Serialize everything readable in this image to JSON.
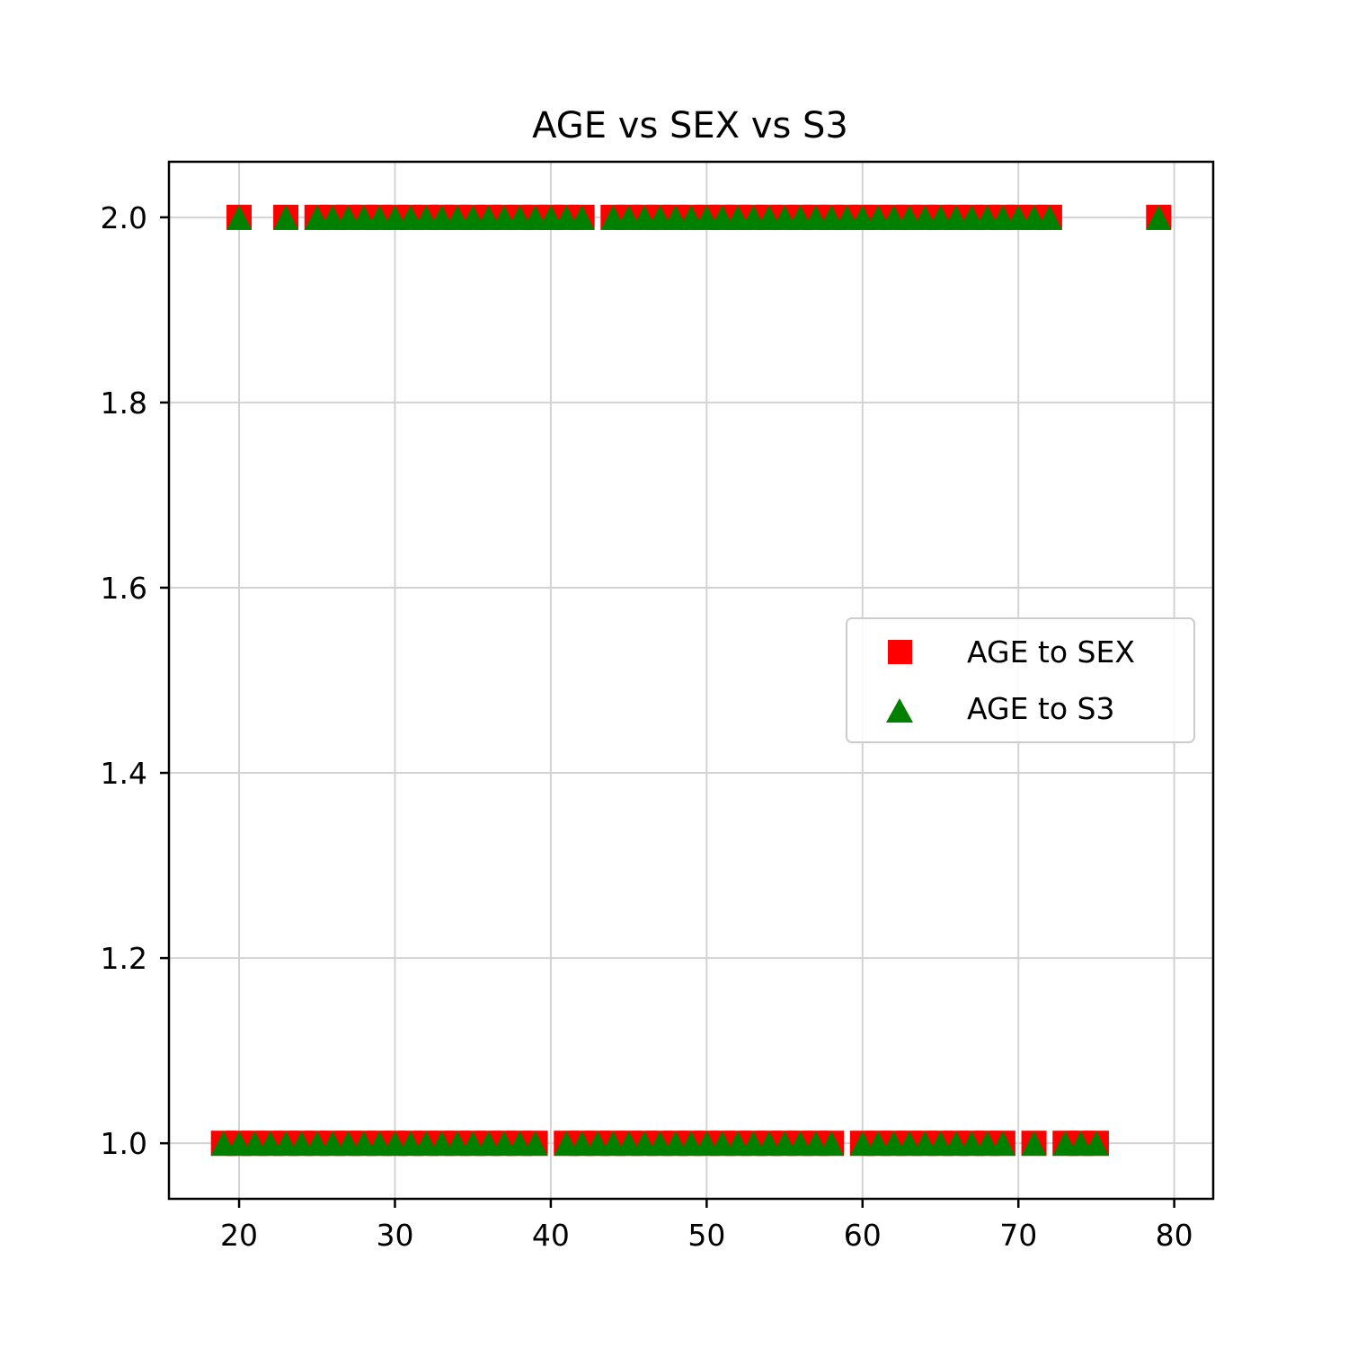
{
  "chart_data": {
    "type": "scatter",
    "title": "AGE vs SEX vs S3",
    "xlabel": "",
    "ylabel": "",
    "xlim": [
      15.5,
      82.5
    ],
    "ylim": [
      0.94,
      2.06
    ],
    "xticks": [
      20,
      30,
      40,
      50,
      60,
      70,
      80
    ],
    "yticks": [
      1.0,
      1.2,
      1.4,
      1.6,
      1.8,
      2.0
    ],
    "xtick_labels": [
      "20",
      "30",
      "40",
      "50",
      "60",
      "70",
      "80"
    ],
    "ytick_labels": [
      "1.0",
      "1.2",
      "1.4",
      "1.6",
      "1.8",
      "2.0"
    ],
    "grid": true,
    "legend_position": "center-right",
    "series": [
      {
        "name": "AGE to SEX",
        "marker": "square",
        "color": "#ff0000",
        "points": [
          {
            "y": 2,
            "x": [
              20,
              23,
              25,
              26,
              27,
              28,
              29,
              30,
              31,
              32,
              33,
              34,
              35,
              36,
              37,
              38,
              39,
              40,
              41,
              42,
              44,
              45,
              46,
              47,
              48,
              49,
              50,
              51,
              52,
              53,
              54,
              55,
              56,
              57,
              58,
              59,
              60,
              61,
              62,
              63,
              64,
              65,
              66,
              67,
              68,
              69,
              70,
              71,
              72,
              79
            ]
          },
          {
            "y": 1,
            "x": [
              19,
              20,
              21,
              22,
              23,
              24,
              25,
              26,
              27,
              28,
              29,
              30,
              31,
              32,
              33,
              34,
              35,
              36,
              37,
              38,
              39,
              41,
              42,
              43,
              44,
              45,
              46,
              47,
              48,
              49,
              50,
              51,
              52,
              53,
              54,
              55,
              56,
              57,
              58,
              60,
              61,
              62,
              63,
              64,
              65,
              66,
              67,
              68,
              69,
              71,
              73,
              74,
              75
            ]
          }
        ]
      },
      {
        "name": "AGE to S3",
        "marker": "triangle",
        "color": "#008000",
        "points": [
          {
            "y": 2,
            "x": [
              20,
              23,
              25,
              26,
              27,
              28,
              29,
              30,
              31,
              32,
              33,
              34,
              35,
              36,
              37,
              38,
              39,
              40,
              41,
              42,
              44,
              45,
              46,
              47,
              48,
              49,
              50,
              51,
              52,
              53,
              54,
              55,
              56,
              57,
              58,
              59,
              60,
              61,
              62,
              63,
              64,
              65,
              66,
              67,
              68,
              69,
              70,
              71,
              72,
              79
            ]
          },
          {
            "y": 1,
            "x": [
              19,
              20,
              21,
              22,
              23,
              24,
              25,
              26,
              27,
              28,
              29,
              30,
              31,
              32,
              33,
              34,
              35,
              36,
              37,
              38,
              39,
              41,
              42,
              43,
              44,
              45,
              46,
              47,
              48,
              49,
              50,
              51,
              52,
              53,
              54,
              55,
              56,
              57,
              58,
              60,
              61,
              62,
              63,
              64,
              65,
              66,
              67,
              68,
              69,
              71,
              73,
              74,
              75
            ]
          }
        ]
      }
    ]
  }
}
